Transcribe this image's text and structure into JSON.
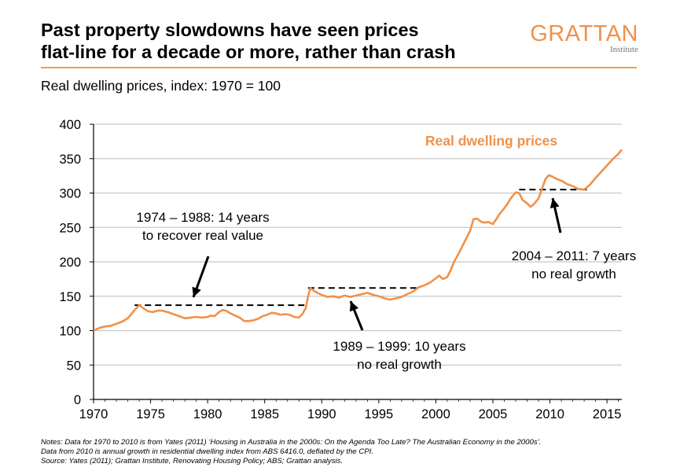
{
  "header": {
    "title_line1": "Past property slowdowns have seen prices",
    "title_line2": "flat-line for a decade or more, rather than crash",
    "logo_main": "GRATTAN",
    "logo_sub": "Institute",
    "accent_color": "#E8A33D",
    "logo_color": "#F0914A"
  },
  "subtitle": "Real dwelling prices, index: 1970 = 100",
  "notes": {
    "line1": "Notes: Data for 1970 to 2010 is from Yates (2011) ‘Housing in Australia in the 2000s: On the Agenda Too Late? The Australian Economy in the 2000s’.",
    "line2": "Data from 2010 is annual growth in residential dwelling index from ABS 6416.0, deflated by the CPI.",
    "line3": "Source: Yates (2011); Grattan Institute, Renovating Housing Policy; ABS; Grattan analysis."
  },
  "chart_data": {
    "type": "line",
    "title": "",
    "xlabel": "",
    "ylabel": "",
    "xlim": [
      1970,
      2016.3
    ],
    "ylim": [
      0,
      400
    ],
    "x_ticks": [
      1970,
      1975,
      1980,
      1985,
      1990,
      1995,
      2000,
      2005,
      2010,
      2015
    ],
    "y_ticks": [
      0,
      50,
      100,
      150,
      200,
      250,
      300,
      350,
      400
    ],
    "grid": "horizontal",
    "series": [
      {
        "name": "Real dwelling prices",
        "color": "#F0914A",
        "x": [
          1970.0,
          1970.5,
          1971.0,
          1971.5,
          1972.0,
          1972.5,
          1973.0,
          1973.3,
          1973.6,
          1974.0,
          1974.4,
          1974.8,
          1975.2,
          1975.6,
          1976.0,
          1976.5,
          1977.0,
          1977.5,
          1978.0,
          1978.5,
          1979.0,
          1979.5,
          1980.0,
          1980.3,
          1980.6,
          1981.0,
          1981.3,
          1981.6,
          1982.0,
          1982.4,
          1982.8,
          1983.2,
          1983.6,
          1984.0,
          1984.4,
          1984.8,
          1985.2,
          1985.6,
          1986.0,
          1986.4,
          1986.8,
          1987.2,
          1987.6,
          1988.0,
          1988.3,
          1988.6,
          1988.8,
          1989.0,
          1989.3,
          1989.6,
          1990.0,
          1990.5,
          1991.0,
          1991.5,
          1992.0,
          1992.5,
          1993.0,
          1993.5,
          1994.0,
          1994.5,
          1995.0,
          1995.5,
          1996.0,
          1996.5,
          1997.0,
          1997.5,
          1998.0,
          1998.5,
          1999.0,
          1999.5,
          2000.0,
          2000.3,
          2000.6,
          2001.0,
          2001.3,
          2001.6,
          2002.0,
          2002.3,
          2002.6,
          2003.0,
          2003.3,
          2003.6,
          2004.0,
          2004.3,
          2004.6,
          2005.0,
          2005.3,
          2005.6,
          2006.0,
          2006.3,
          2006.6,
          2007.0,
          2007.3,
          2007.6,
          2008.0,
          2008.3,
          2008.6,
          2009.0,
          2009.3,
          2009.6,
          2009.9,
          2010.2,
          2010.5,
          2011.0,
          2011.5,
          2012.0,
          2012.5,
          2013.0,
          2013.5,
          2014.0,
          2014.5,
          2015.0,
          2015.5,
          2016.0,
          2016.3
        ],
        "y": [
          100,
          104,
          106,
          107,
          110,
          113,
          118,
          124,
          130,
          137,
          132,
          128,
          127,
          129,
          129,
          127,
          124,
          121,
          118,
          119,
          120,
          119,
          120,
          122,
          121,
          127,
          130,
          129,
          125,
          122,
          119,
          114,
          114,
          115,
          117,
          121,
          123,
          126,
          125,
          123,
          124,
          123,
          120,
          119,
          124,
          133,
          150,
          162,
          158,
          155,
          152,
          149,
          150,
          148,
          151,
          149,
          151,
          153,
          155,
          152,
          150,
          147,
          145,
          147,
          149,
          153,
          157,
          163,
          166,
          170,
          176,
          180,
          175,
          178,
          188,
          200,
          212,
          222,
          232,
          245,
          262,
          263,
          258,
          257,
          258,
          255,
          262,
          270,
          278,
          285,
          293,
          301,
          300,
          290,
          285,
          280,
          284,
          292,
          306,
          320,
          326,
          324,
          321,
          318,
          313,
          310,
          306,
          305,
          312,
          322,
          331,
          340,
          349,
          357,
          363
        ]
      }
    ],
    "reference_lines": [
      {
        "x_start": 1973.6,
        "x_end": 1988.5,
        "y": 137
      },
      {
        "x_start": 1988.8,
        "x_end": 1998.5,
        "y": 162
      },
      {
        "x_start": 2007.3,
        "x_end": 2013.5,
        "y": 305
      }
    ],
    "annotations": [
      {
        "line1": "1974 – 1988: 14 years",
        "line2": "to recover real value"
      },
      {
        "line1": "1989 – 1999: 10 years",
        "line2": "no real growth"
      },
      {
        "line1": "2004 – 2011: 7 years",
        "line2": "no real growth"
      }
    ],
    "series_label": "Real dwelling prices"
  }
}
